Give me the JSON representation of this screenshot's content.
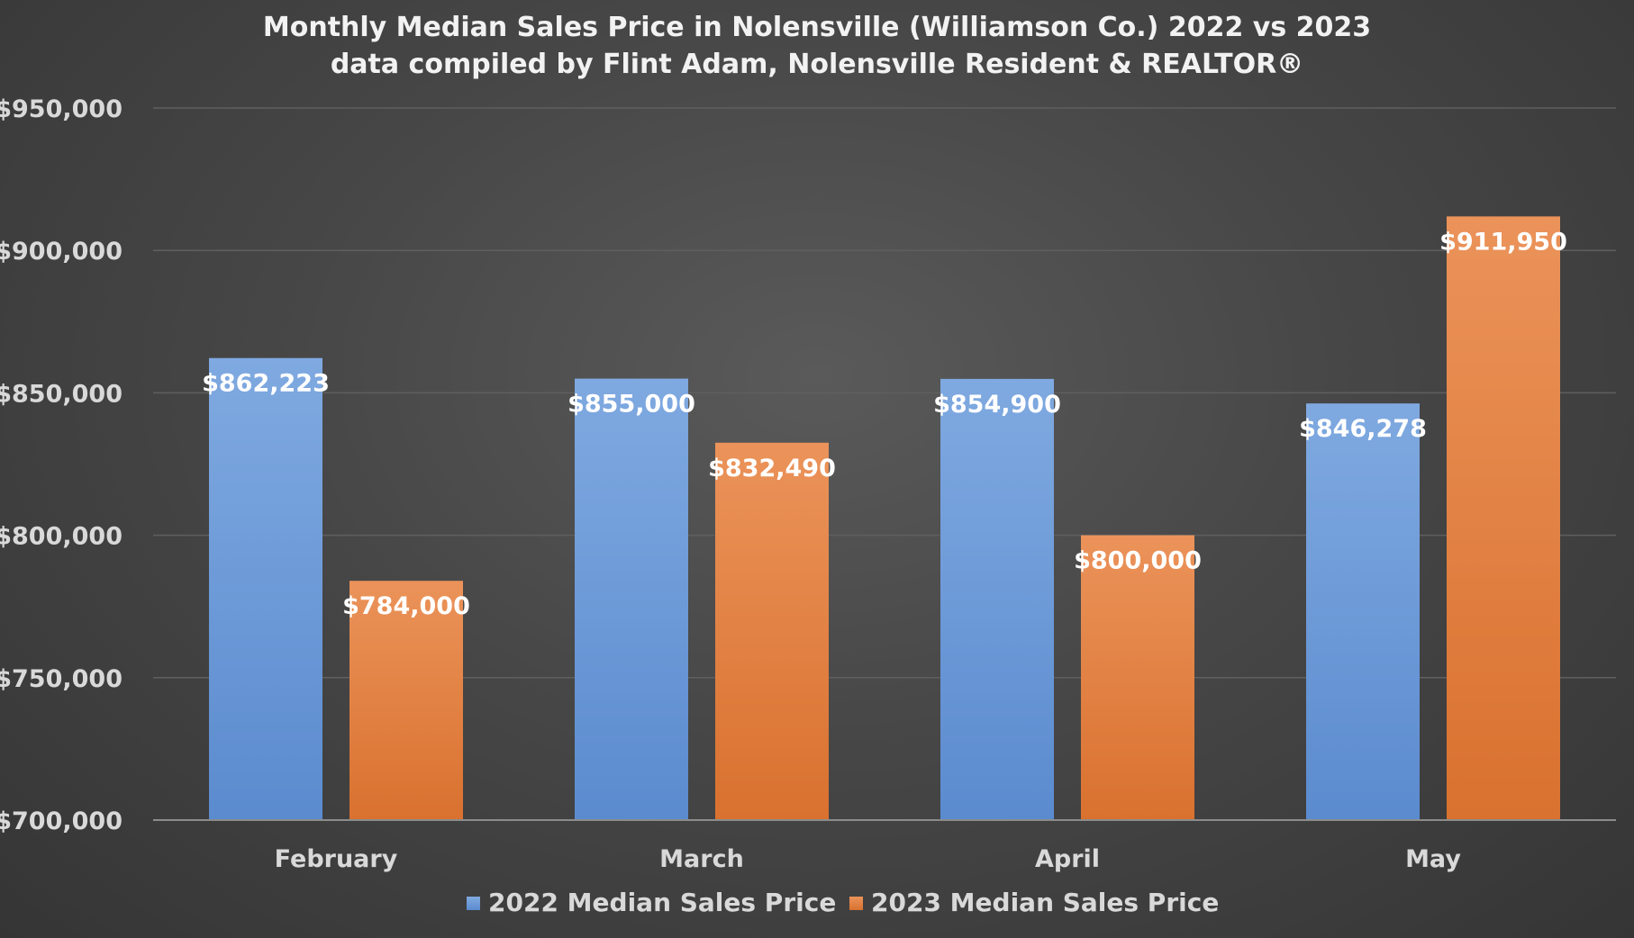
{
  "chart_data": {
    "type": "bar",
    "title": "Monthly Median Sales Price in Nolensville (Williamson Co.) 2022 vs 2023",
    "subtitle": "data compiled by Flint Adam, Nolensville Resident & REALTOR®",
    "categories": [
      "February",
      "March",
      "April",
      "May"
    ],
    "series": [
      {
        "name": "2022 Median Sales Price",
        "values": [
          862223,
          855000,
          854900,
          846278
        ],
        "labels": [
          "$862,223",
          "$855,000",
          "$854,900",
          "$846,278"
        ],
        "color": "#6a9bdc"
      },
      {
        "name": "2023 Median Sales Price",
        "values": [
          784000,
          832490,
          800000,
          911950
        ],
        "labels": [
          "$784,000",
          "$832,490",
          "$800,000",
          "$911,950"
        ],
        "color": "#e8894a"
      }
    ],
    "ylim": [
      700000,
      950000
    ],
    "yticks": [
      700000,
      750000,
      800000,
      850000,
      900000,
      950000
    ],
    "ytick_labels": [
      "$700,000",
      "$750,000",
      "$800,000",
      "$850,000",
      "$900,000",
      "$950,000"
    ],
    "xlabel": "",
    "ylabel": "",
    "grid": true,
    "legend": "bottom"
  }
}
